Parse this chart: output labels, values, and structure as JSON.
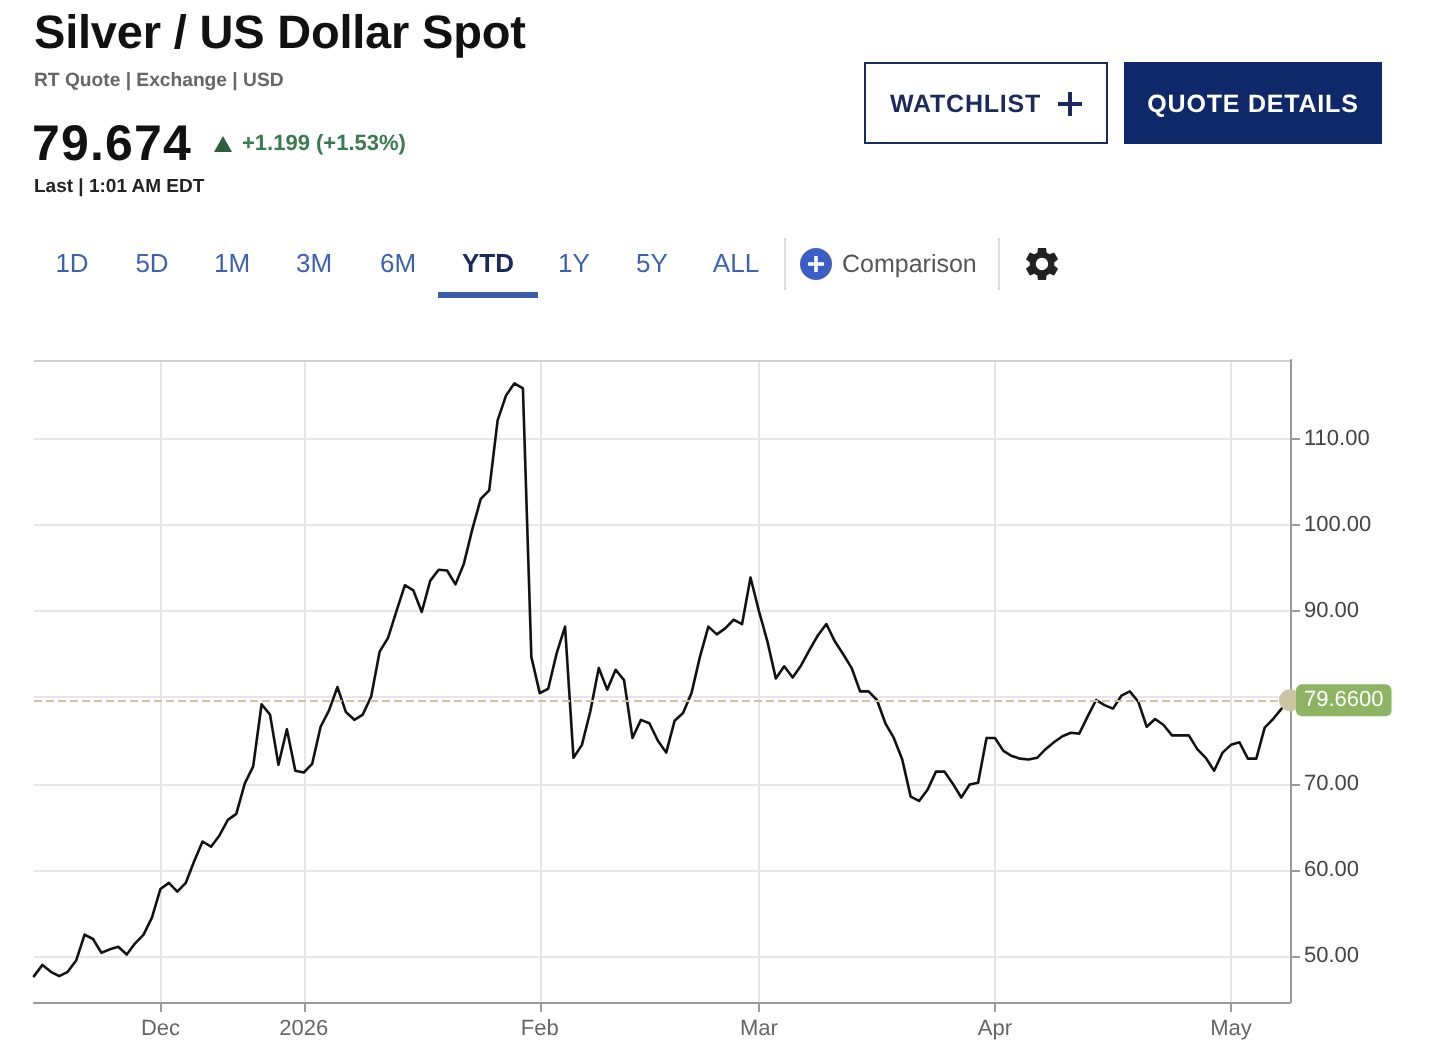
{
  "chart_data": {
    "type": "line",
    "title": "Silver / US Dollar Spot",
    "subtitle": "RT Quote | Exchange | USD",
    "annotations": [
      "79.674",
      "+1.199 (+1.53%)",
      "Last | 1:01 AM EDT",
      "WATCHLIST",
      "QUOTE DETAILS",
      "1D",
      "5D",
      "1M",
      "3M",
      "6M",
      "YTD",
      "1Y",
      "5Y",
      "ALL",
      "Comparison"
    ],
    "categories": [
      null,
      null,
      null,
      null,
      null,
      null,
      null,
      null,
      null,
      null,
      null,
      null,
      null,
      null,
      null,
      "Dec",
      null,
      null,
      null,
      null,
      null,
      null,
      null,
      null,
      null,
      null,
      null,
      null,
      null,
      null,
      null,
      null,
      "2026",
      null,
      null,
      null,
      null,
      null,
      null,
      null,
      null,
      null,
      null,
      null,
      null,
      null,
      null,
      null,
      null,
      null,
      null,
      null,
      null,
      null,
      null,
      null,
      null,
      null,
      null,
      null,
      "Feb",
      null,
      null,
      null,
      null,
      null,
      null,
      null,
      null,
      null,
      null,
      null,
      null,
      null,
      null,
      null,
      null,
      null,
      null,
      null,
      null,
      null,
      null,
      null,
      null,
      null,
      "Mar",
      null,
      null,
      null,
      null,
      null,
      null,
      null,
      null,
      null,
      null,
      null,
      null,
      null,
      null,
      null,
      null,
      null,
      null,
      null,
      null,
      null,
      null,
      null,
      null,
      null,
      null,
      null,
      "Apr",
      null,
      null,
      null,
      null,
      null,
      null,
      null,
      null,
      null,
      null,
      null,
      null,
      null,
      null,
      null,
      null,
      null,
      null,
      null,
      null,
      null,
      null,
      null,
      null,
      null,
      null,
      null,
      "May",
      null,
      null,
      null,
      null,
      null,
      null,
      null
    ],
    "series": [
      {
        "color": "#111111",
        "values": [
          47.7,
          49.0,
          48.2,
          47.7,
          48.2,
          49.5,
          52.5,
          52.0,
          50.4,
          50.8,
          51.1,
          50.2,
          51.5,
          52.5,
          54.5,
          57.8,
          58.5,
          57.5,
          58.5,
          61.0,
          63.3,
          62.7,
          64.0,
          65.8,
          66.5,
          70.0,
          72.0,
          79.2,
          78.0,
          72.2,
          76.3,
          71.5,
          71.3,
          72.3,
          76.6,
          78.5,
          81.2,
          78.3,
          77.4,
          78.0,
          80.1,
          85.3,
          86.9,
          90.0,
          93.0,
          92.4,
          89.9,
          93.5,
          94.8,
          94.7,
          93.1,
          95.5,
          99.5,
          103.0,
          104.0,
          112.1,
          115.0,
          116.4,
          115.8,
          84.7,
          80.5,
          81.0,
          85.1,
          88.2,
          73.0,
          74.5,
          78.4,
          83.4,
          80.9,
          83.2,
          82.0,
          75.3,
          77.4,
          77.0,
          75.0,
          73.6,
          77.3,
          78.2,
          80.5,
          84.7,
          88.2,
          87.3,
          88.0,
          89.0,
          88.5,
          93.9,
          90.0,
          86.5,
          82.2,
          83.6,
          82.3,
          83.7,
          85.5,
          87.2,
          88.5,
          86.5,
          85.0,
          83.4,
          80.7,
          80.7,
          79.7,
          77.0,
          75.3,
          72.8,
          68.5,
          68.0,
          69.3,
          71.4,
          71.4,
          70.0,
          68.4,
          69.9,
          70.1,
          75.3,
          75.3,
          73.8,
          73.2,
          72.9,
          72.8,
          73.0,
          74.0,
          74.8,
          75.5,
          75.9,
          75.8,
          77.8,
          79.7,
          79.1,
          78.7,
          80.2,
          80.7,
          79.5,
          76.6,
          77.5,
          76.8,
          75.6,
          75.6,
          75.6,
          74.0,
          73.0,
          71.5,
          73.6,
          74.5,
          74.8,
          72.9,
          72.9,
          76.5,
          77.5,
          78.7,
          79.7
        ]
      }
    ],
    "ylim": [
      44.7,
      119.1
    ],
    "yticks": [
      {
        "value": 50,
        "label": "50.00"
      },
      {
        "value": 60,
        "label": "60.00"
      },
      {
        "value": 70,
        "label": "70.00"
      },
      {
        "value": 80,
        "label": null
      },
      {
        "value": 90,
        "label": "90.00"
      },
      {
        "value": 100,
        "label": "100.00"
      },
      {
        "value": 110,
        "label": "110.00"
      }
    ],
    "grid": true,
    "ref_lines": [
      {
        "axis": "y",
        "value": 79.66,
        "label": "79.6600",
        "color": "#c9c5a2",
        "line_style": "dashed"
      }
    ]
  }
}
